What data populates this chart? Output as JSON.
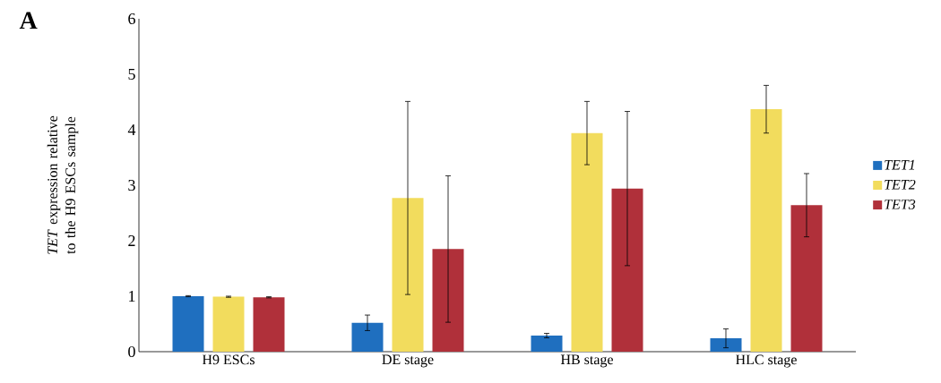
{
  "chart_data": {
    "type": "bar",
    "ylabel": "*TET* expression relative to the H9 ESCs sample",
    "categories": [
      "H9 ESCs",
      "DE stage",
      "HB stage",
      "HLC stage"
    ],
    "series": [
      {
        "name": "TET1",
        "color": "#1f6fbf",
        "values": [
          1.0,
          0.52,
          0.29,
          0.24
        ],
        "errors": [
          0.01,
          0.14,
          0.04,
          0.17
        ]
      },
      {
        "name": "TET2",
        "color": "#f2dc5d",
        "values": [
          0.99,
          2.77,
          3.94,
          4.37
        ],
        "errors": [
          0.01,
          1.74,
          0.57,
          0.43
        ]
      },
      {
        "name": "TET3",
        "color": "#b0303a",
        "values": [
          0.98,
          1.85,
          2.94,
          2.64
        ],
        "errors": [
          0.01,
          1.32,
          1.39,
          0.57
        ]
      }
    ],
    "ylim": [
      0,
      6
    ],
    "yticks": [
      0,
      1,
      2,
      3,
      4,
      5,
      6
    ],
    "legend": "right",
    "annotations": [
      "A"
    ]
  }
}
